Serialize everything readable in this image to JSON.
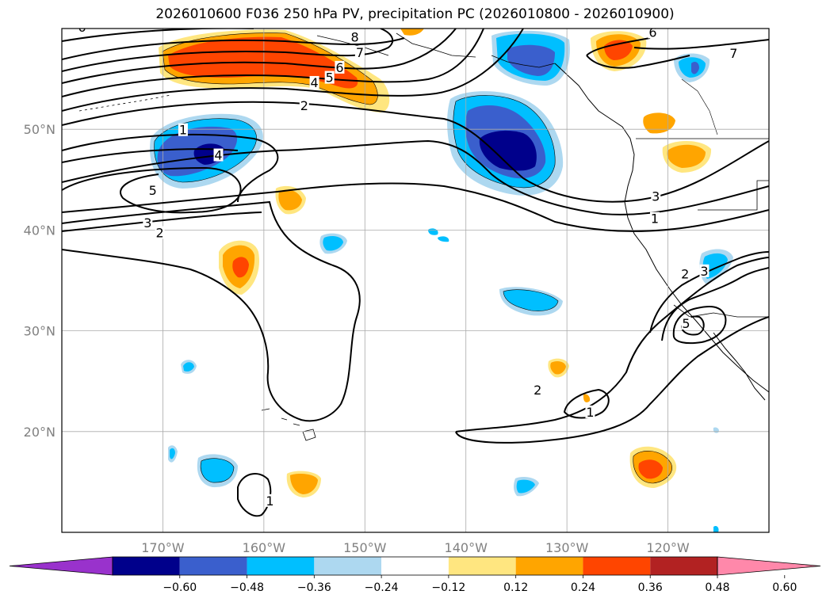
{
  "chart_data": {
    "type": "heatmap",
    "title": "2026010600 F036 250 hPa PV, precipitation PC (2026010800 - 2026010900)",
    "map": {
      "lon_range": [
        -180,
        -110
      ],
      "lat_range": [
        10,
        60
      ],
      "lat_ticks": [
        {
          "value": 50,
          "label": "50°N"
        },
        {
          "value": 40,
          "label": "40°N"
        },
        {
          "value": 30,
          "label": "30°N"
        },
        {
          "value": 20,
          "label": "20°N"
        }
      ],
      "lon_ticks": [
        {
          "value": -170,
          "label": "170°W"
        },
        {
          "value": -160,
          "label": "160°W"
        },
        {
          "value": -150,
          "label": "150°W"
        },
        {
          "value": -140,
          "label": "140°W"
        },
        {
          "value": -130,
          "label": "130°W"
        },
        {
          "value": -120,
          "label": "120°W"
        }
      ],
      "grid": true
    },
    "colorbar": {
      "ticks": [
        "−0.60",
        "−0.48",
        "−0.36",
        "−0.24",
        "−0.12",
        "0.12",
        "0.24",
        "0.36",
        "0.48",
        "0.60"
      ],
      "colors": [
        "#9932cc",
        "#00008b",
        "#3a5fcd",
        "#00bfff",
        "#add8f0",
        "#ffffff",
        "#ffe680",
        "#ffa500",
        "#ff4500",
        "#b22222",
        "#ff88aa"
      ],
      "extend": "both"
    },
    "pv_contour_labels": [
      {
        "text": "6",
        "lon": -178,
        "lat": 60
      },
      {
        "text": "8",
        "lon": -151,
        "lat": 59
      },
      {
        "text": "7",
        "lon": -150.5,
        "lat": 57.5
      },
      {
        "text": "6",
        "lon": -152.5,
        "lat": 56
      },
      {
        "text": "5",
        "lon": -153.5,
        "lat": 55
      },
      {
        "text": "4",
        "lon": -155,
        "lat": 54.5
      },
      {
        "text": "2",
        "lon": -156,
        "lat": 52.2
      },
      {
        "text": "1",
        "lon": -168,
        "lat": 49.8
      },
      {
        "text": "4",
        "lon": -164.5,
        "lat": 47.3
      },
      {
        "text": "5",
        "lon": -171,
        "lat": 43.8
      },
      {
        "text": "3",
        "lon": -171.5,
        "lat": 40.6
      },
      {
        "text": "2",
        "lon": -170.3,
        "lat": 39.6
      },
      {
        "text": "6",
        "lon": -121.5,
        "lat": 59.5
      },
      {
        "text": "7",
        "lon": -113.5,
        "lat": 57.4
      },
      {
        "text": "3",
        "lon": -121.2,
        "lat": 43.2
      },
      {
        "text": "1",
        "lon": -121.3,
        "lat": 41.0
      },
      {
        "text": "2",
        "lon": -118.3,
        "lat": 35.5
      },
      {
        "text": "3",
        "lon": -116.4,
        "lat": 35.8
      },
      {
        "text": "5",
        "lon": -118.2,
        "lat": 30.6
      },
      {
        "text": "2",
        "lon": -132.9,
        "lat": 24.0
      },
      {
        "text": "1",
        "lon": -127.7,
        "lat": 21.8
      },
      {
        "text": "1",
        "lon": -159.4,
        "lat": 13.0
      }
    ],
    "precip_anomaly_regions": [
      {
        "name": "north-pacific-positive",
        "sign": "positive",
        "peak": 0.42,
        "lon": -158,
        "lat": 55.5
      },
      {
        "name": "gulf-of-alaska-negative",
        "sign": "negative",
        "peak": -0.54,
        "lon": -136,
        "lat": 48.5
      },
      {
        "name": "aleutian-negative",
        "sign": "negative",
        "peak": -0.5,
        "lon": -165,
        "lat": 47
      },
      {
        "name": "alaska-panhandle-negative",
        "sign": "negative",
        "peak": -0.4,
        "lon": -134.5,
        "lat": 56.5
      },
      {
        "name": "subtropical-positive",
        "sign": "positive",
        "peak": 0.4,
        "lon": -161,
        "lat": 36
      },
      {
        "name": "california-offshore-positive",
        "sign": "positive",
        "peak": 0.4,
        "lon": -122,
        "lat": 16
      }
    ]
  }
}
